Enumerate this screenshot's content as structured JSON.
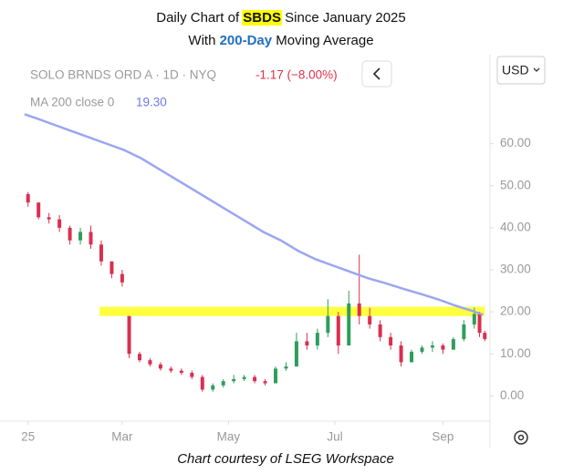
{
  "chart_data": {
    "type": "candlestick",
    "title_parts": [
      "Daily Chart of ",
      "SBDS",
      " Since January 2025"
    ],
    "subtitle_parts": [
      "With ",
      "200-Day",
      " Moving Average"
    ],
    "symbol_info": "SOLO BRNDS ORD A · 1D · NYQ",
    "change": "-1.17 (−8.00%)",
    "ma_label": "MA 200 close 0",
    "ma_value": "19.30",
    "currency": "USD",
    "source": "Chart courtesy of LSEG Workspace",
    "xlim": [
      2,
      270
    ],
    "xticks": [
      {
        "value": 5,
        "label": "25"
      },
      {
        "value": 59,
        "label": "Mar"
      },
      {
        "value": 120,
        "label": "May"
      },
      {
        "value": 181,
        "label": "Jul"
      },
      {
        "value": 243,
        "label": "Sep"
      }
    ],
    "ylim": [
      -6,
      79
    ],
    "yticks": [
      {
        "value": 0,
        "label": "0.00"
      },
      {
        "value": 10,
        "label": "10.00"
      },
      {
        "value": 20,
        "label": "20.00"
      },
      {
        "value": 30,
        "label": "30.00"
      },
      {
        "value": 40,
        "label": "40.00"
      },
      {
        "value": 50,
        "label": "50.00"
      },
      {
        "value": 60,
        "label": "60.00"
      }
    ],
    "highlight": {
      "xlim": [
        46,
        267
      ],
      "ylim": [
        19,
        21.2
      ],
      "color": "#ffff00"
    },
    "series": [
      {
        "type": "candlestick",
        "up_color": "#2e9e5b",
        "down_color": "#d9304f",
        "x": [
          5,
          11,
          17,
          23,
          29,
          35,
          41,
          47,
          53,
          59,
          63,
          69,
          75,
          81,
          87,
          93,
          99,
          105,
          111,
          117,
          123,
          129,
          135,
          141,
          147,
          153,
          159,
          165,
          171,
          177,
          183,
          189,
          195,
          201,
          207,
          213,
          219,
          225,
          231,
          237,
          243,
          249,
          255,
          261,
          264,
          267
        ],
        "open": [
          48,
          46,
          42.5,
          42,
          40,
          37,
          39,
          36,
          32,
          29,
          19,
          10,
          8.5,
          7.5,
          6.5,
          6,
          5.5,
          4.5,
          1.5,
          2.5,
          3.5,
          4,
          4.5,
          3.5,
          3,
          6.5,
          7,
          13,
          12,
          15,
          19,
          12,
          22,
          19,
          17,
          14,
          12,
          8,
          10.5,
          11.5,
          12,
          11,
          13.5,
          17,
          19.5,
          15
        ],
        "high": [
          48.5,
          46,
          43.5,
          43,
          40.5,
          40,
          40.5,
          37,
          32,
          30,
          19,
          10.5,
          9,
          8,
          7,
          6.5,
          6,
          5,
          3,
          4,
          5,
          5,
          5,
          4,
          7,
          8,
          15,
          15,
          16,
          23,
          20,
          25,
          33.6,
          21,
          18,
          15,
          13,
          11,
          12,
          13,
          12.5,
          14,
          18,
          21,
          20,
          15.5
        ],
        "low": [
          45,
          42,
          41,
          39,
          36,
          36,
          35,
          31,
          28,
          26,
          9,
          8,
          7,
          6,
          5.5,
          5,
          4,
          1,
          1,
          2,
          3,
          3.5,
          3,
          2.5,
          3,
          6,
          7,
          11,
          11,
          14,
          10,
          12,
          17,
          16,
          13,
          11,
          7,
          8,
          10,
          10.5,
          10,
          11,
          13,
          16,
          14,
          13
        ],
        "close": [
          46,
          42.5,
          42,
          40,
          37,
          39,
          36,
          32,
          29,
          27,
          10,
          8.5,
          7.5,
          6.5,
          6,
          5.5,
          4.5,
          1.5,
          2.5,
          3.5,
          4,
          4.5,
          3.5,
          3,
          6.5,
          7,
          13,
          12,
          15,
          19,
          12,
          22,
          19,
          17,
          14,
          12,
          8,
          10.5,
          11.5,
          12,
          11,
          13.5,
          17,
          19.5,
          15,
          13.5
        ]
      },
      {
        "type": "line",
        "color": "#9aa6f2",
        "x": [
          3,
          10,
          20,
          30,
          40,
          50,
          60,
          70,
          80,
          90,
          100,
          110,
          120,
          130,
          140,
          150,
          160,
          170,
          180,
          190,
          200,
          210,
          220,
          230,
          240,
          250,
          260,
          266
        ],
        "values": [
          67,
          66,
          64.5,
          63,
          61.5,
          60,
          58.5,
          56.5,
          54,
          51.5,
          49,
          46.5,
          44,
          41.5,
          39,
          37,
          34.5,
          32.5,
          31,
          29.5,
          28,
          26.8,
          25.5,
          24.3,
          23,
          21.5,
          20.2,
          19.3
        ]
      }
    ]
  }
}
